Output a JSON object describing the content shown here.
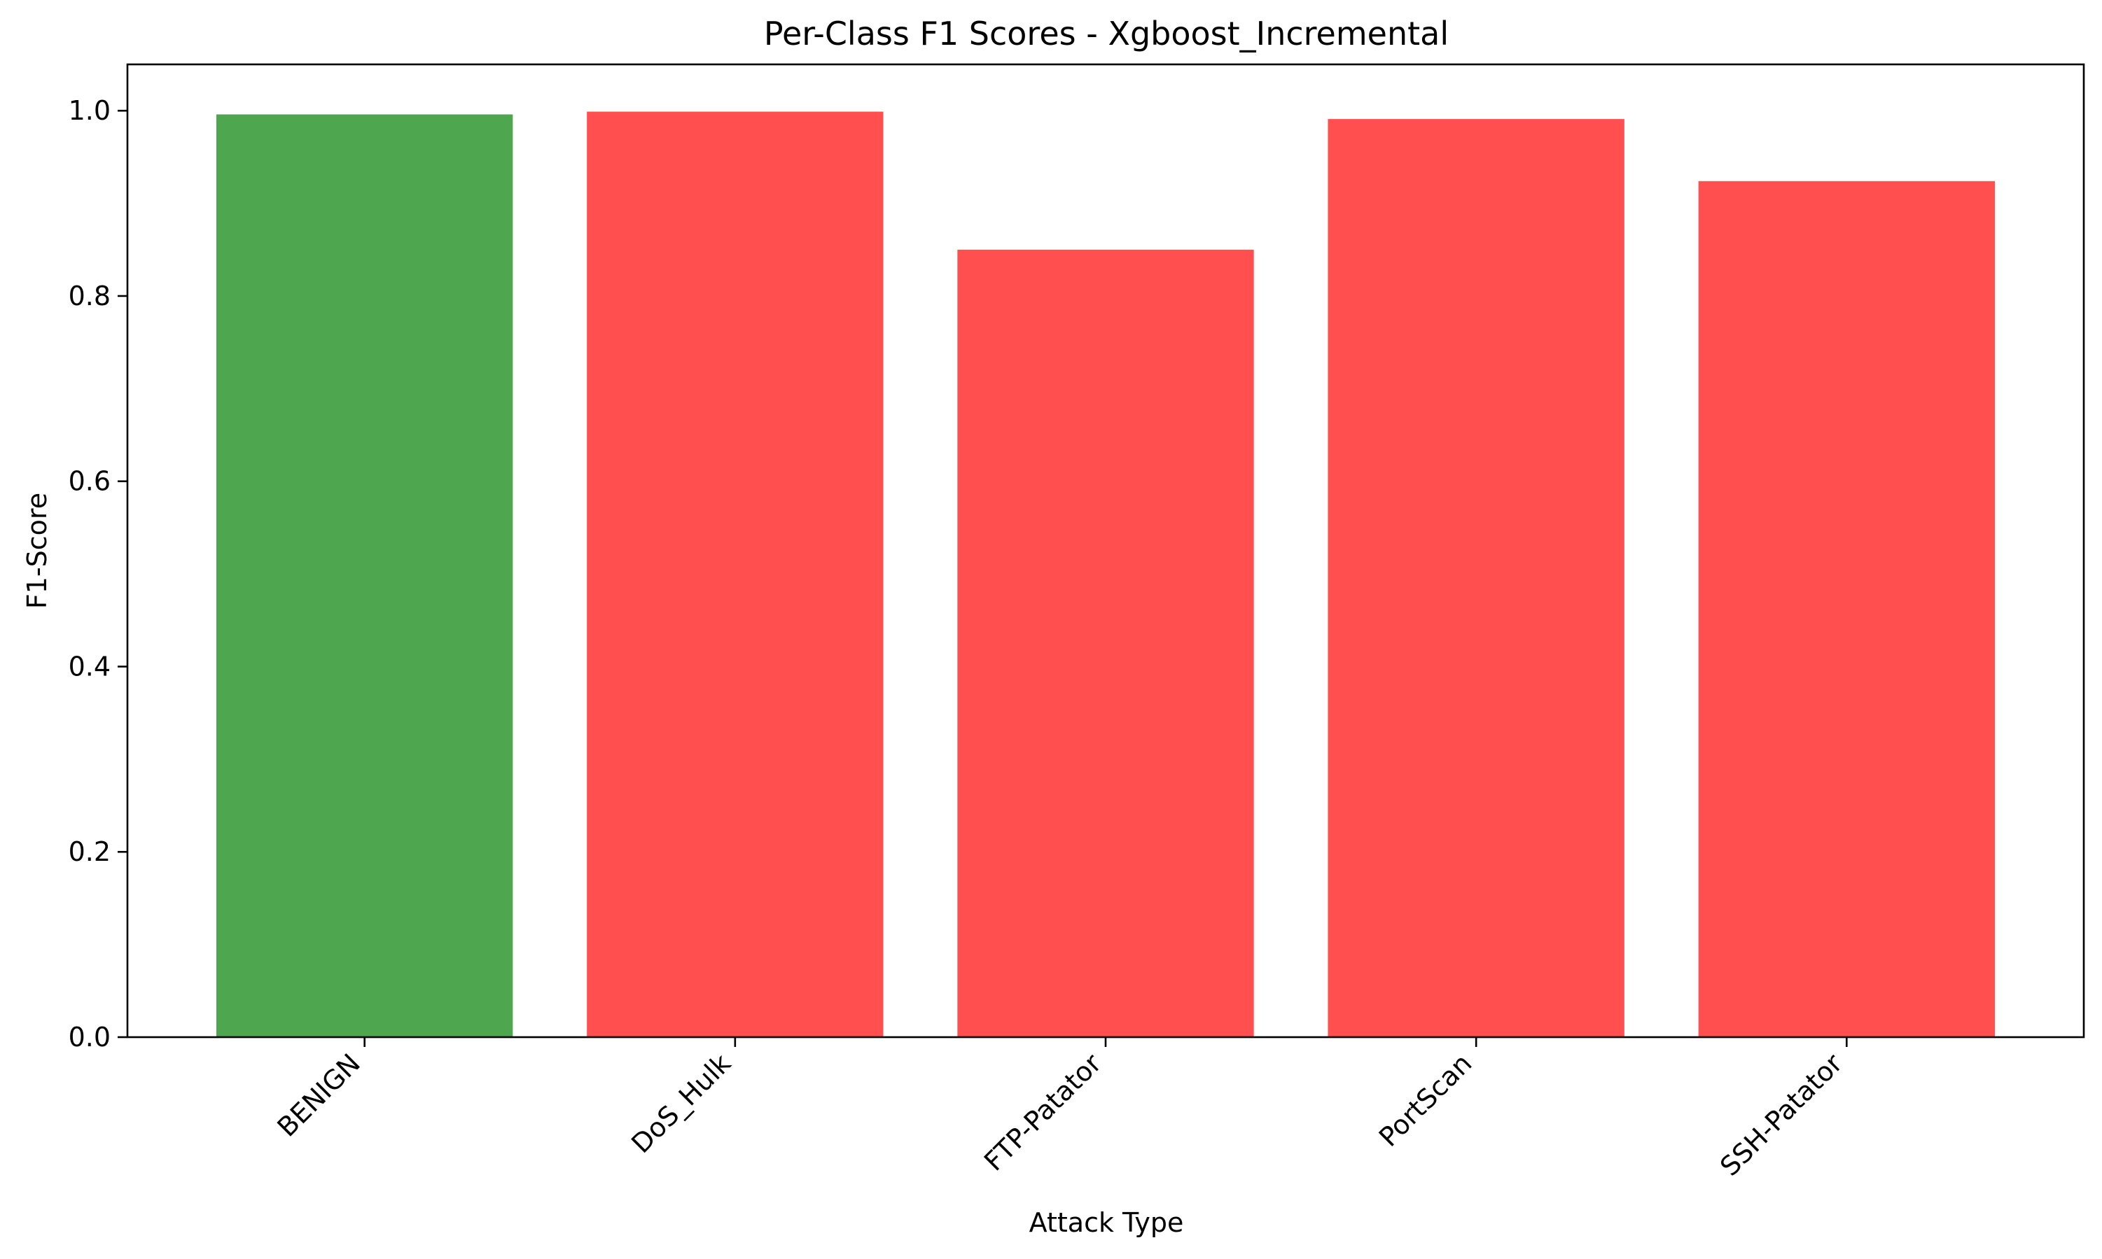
{
  "chart_data": {
    "type": "bar",
    "title": "Per-Class F1 Scores - Xgboost_Incremental",
    "xlabel": "Attack Type",
    "ylabel": "F1-Score",
    "categories": [
      "BENIGN",
      "DoS_Hulk",
      "FTP-Patator",
      "PortScan",
      "SSH-Patator"
    ],
    "values": [
      0.996,
      0.999,
      0.85,
      0.991,
      0.924
    ],
    "bar_colors": [
      "#4ea64e",
      "#ff4f4f",
      "#ff4f4f",
      "#ff4f4f",
      "#ff4f4f"
    ],
    "ylim": [
      0,
      1.05
    ],
    "yticks": [
      0.0,
      0.2,
      0.4,
      0.6,
      0.8,
      1.0
    ],
    "ytick_labels": [
      "0.0",
      "0.2",
      "0.4",
      "0.6",
      "0.8",
      "1.0"
    ],
    "grid": false,
    "legend": "none"
  }
}
